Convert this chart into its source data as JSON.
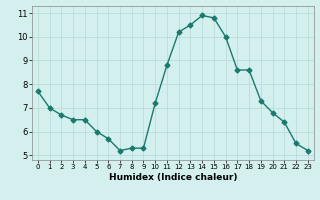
{
  "x": [
    0,
    1,
    2,
    3,
    4,
    5,
    6,
    7,
    8,
    9,
    10,
    11,
    12,
    13,
    14,
    15,
    16,
    17,
    18,
    19,
    20,
    21,
    22,
    23
  ],
  "y": [
    7.7,
    7.0,
    6.7,
    6.5,
    6.5,
    6.0,
    5.7,
    5.2,
    5.3,
    5.3,
    7.2,
    8.8,
    10.2,
    10.5,
    10.9,
    10.8,
    10.0,
    8.6,
    8.6,
    7.3,
    6.8,
    6.4,
    5.5,
    5.2
  ],
  "xlabel": "Humidex (Indice chaleur)",
  "xlim": [
    -0.5,
    23.5
  ],
  "ylim": [
    4.8,
    11.3
  ],
  "yticks": [
    5,
    6,
    7,
    8,
    9,
    10,
    11
  ],
  "xticks": [
    0,
    1,
    2,
    3,
    4,
    5,
    6,
    7,
    8,
    9,
    10,
    11,
    12,
    13,
    14,
    15,
    16,
    17,
    18,
    19,
    20,
    21,
    22,
    23
  ],
  "line_color": "#1a7a6e",
  "bg_color": "#d4f0ee",
  "grid_color": "#b8d8d5",
  "marker": "D",
  "marker_size": 2.5,
  "linewidth": 1.0,
  "tick_fontsize_x": 5.0,
  "tick_fontsize_y": 6.0,
  "xlabel_fontsize": 6.5
}
